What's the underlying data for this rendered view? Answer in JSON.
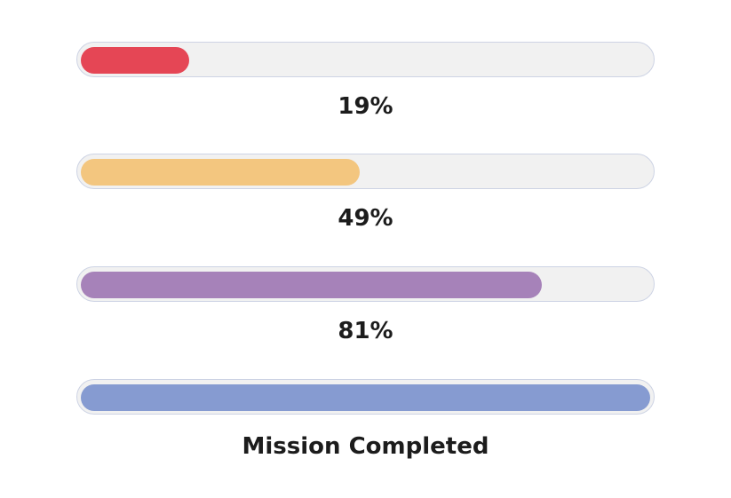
{
  "bars": [
    {
      "fraction": 0.19,
      "label": "19%",
      "color": "#e54655"
    },
    {
      "fraction": 0.49,
      "label": "49%",
      "color": "#f3c67f"
    },
    {
      "fraction": 0.81,
      "label": "81%",
      "color": "#a682b9"
    },
    {
      "fraction": 1.0,
      "label": "Mission Completed",
      "color": "#869bd1"
    }
  ]
}
